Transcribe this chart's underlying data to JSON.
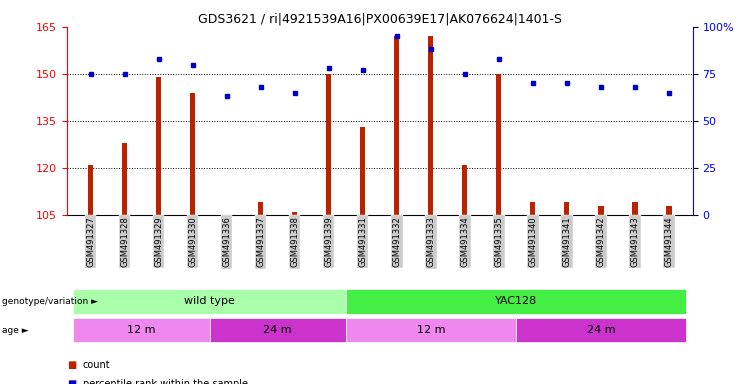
{
  "title": "GDS3621 / ri|4921539A16|PX00639E17|AK076624|1401-S",
  "samples": [
    "GSM491327",
    "GSM491328",
    "GSM491329",
    "GSM491330",
    "GSM491336",
    "GSM491337",
    "GSM491338",
    "GSM491339",
    "GSM491331",
    "GSM491332",
    "GSM491333",
    "GSM491334",
    "GSM491335",
    "GSM491340",
    "GSM491341",
    "GSM491342",
    "GSM491343",
    "GSM491344"
  ],
  "counts": [
    121,
    128,
    149,
    144,
    105,
    109,
    106,
    150,
    133,
    162,
    162,
    121,
    150,
    109,
    109,
    108,
    109,
    108
  ],
  "percentiles": [
    75,
    75,
    83,
    80,
    63,
    68,
    65,
    78,
    77,
    95,
    88,
    75,
    83,
    70,
    70,
    68,
    68,
    65
  ],
  "ylim_left": [
    105,
    165
  ],
  "ylim_right": [
    0,
    100
  ],
  "yticks_left": [
    105,
    120,
    135,
    150,
    165
  ],
  "yticks_right": [
    0,
    25,
    50,
    75,
    100
  ],
  "bar_color": "#bb2200",
  "dot_color": "#0000cc",
  "title_fontsize": 9,
  "genotype_groups": [
    {
      "label": "wild type",
      "start": 0,
      "end": 8,
      "color": "#aaffaa"
    },
    {
      "label": "YAC128",
      "start": 8,
      "end": 18,
      "color": "#44ee44"
    }
  ],
  "age_groups": [
    {
      "label": "12 m",
      "start": 0,
      "end": 4,
      "color": "#ee88ee"
    },
    {
      "label": "24 m",
      "start": 4,
      "end": 8,
      "color": "#cc33cc"
    },
    {
      "label": "12 m",
      "start": 8,
      "end": 13,
      "color": "#ee88ee"
    },
    {
      "label": "24 m",
      "start": 13,
      "end": 18,
      "color": "#cc33cc"
    }
  ],
  "tick_bg_color": "#cccccc",
  "legend_count_color": "#bb2200",
  "legend_pct_color": "#0000cc",
  "bar_width": 0.15
}
